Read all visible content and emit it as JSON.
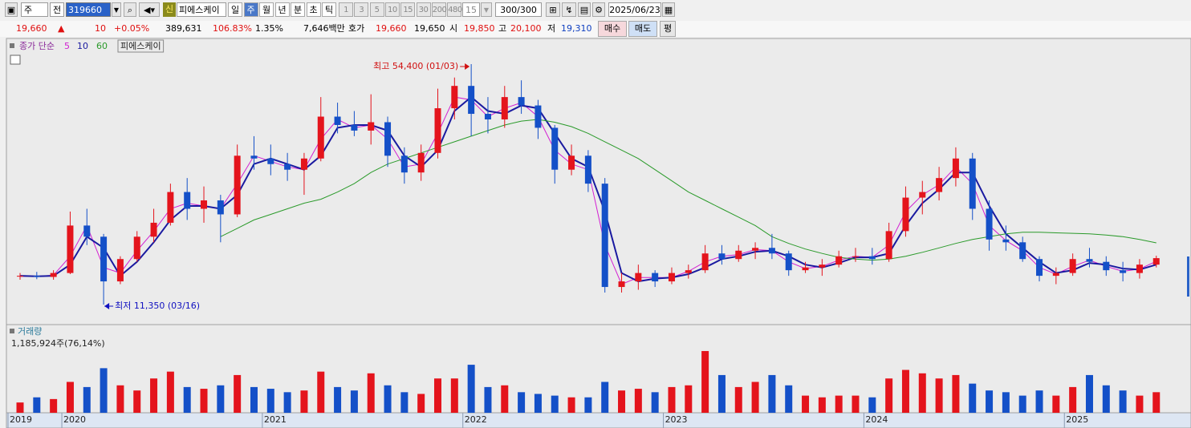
{
  "toolbar": {
    "market": "주",
    "prev": "전",
    "code": "319660",
    "badge": "신",
    "name": "피에스케이",
    "periods": [
      "일",
      "주",
      "월",
      "년",
      "분",
      "초",
      "틱"
    ],
    "intervals": [
      "1",
      "3",
      "5",
      "10",
      "15",
      "30",
      "200",
      "480"
    ],
    "interval": "15",
    "count": "300/300",
    "date": "2025/06/23"
  },
  "quote": {
    "price": "19,660",
    "arrow": "▲",
    "change": "10",
    "rate": "+0.05%",
    "volume": "389,631",
    "vol_ratio": "106.83%",
    "turnover": "1.35%",
    "amount": "7,646백만",
    "hoga": "호가",
    "ask": "19,660",
    "bid": "19,650",
    "open_label": "시",
    "open": "19,850",
    "high_label": "고",
    "high": "20,100",
    "low_label": "저",
    "low": "19,310",
    "buy": "매수",
    "sell": "매도",
    "avg": "평"
  },
  "chart_data": {
    "type": "candlestick",
    "categories": [
      "2019",
      null,
      null,
      "2020",
      null,
      null,
      null,
      null,
      null,
      null,
      null,
      null,
      null,
      null,
      null,
      "2021",
      null,
      null,
      null,
      null,
      null,
      null,
      null,
      null,
      null,
      null,
      null,
      "2022",
      null,
      null,
      null,
      null,
      null,
      null,
      null,
      null,
      null,
      null,
      null,
      "2023",
      null,
      null,
      null,
      null,
      null,
      null,
      null,
      null,
      null,
      null,
      null,
      "2024",
      null,
      null,
      null,
      null,
      null,
      null,
      null,
      null,
      null,
      null,
      null,
      "2025",
      null,
      null,
      null,
      null,
      null
    ],
    "open": [
      16400,
      16500,
      16300,
      17000,
      25500,
      23500,
      15500,
      19500,
      23500,
      26000,
      31500,
      28500,
      30000,
      27500,
      38000,
      37500,
      36500,
      35500,
      37500,
      45000,
      43500,
      42500,
      44000,
      38000,
      35000,
      38500,
      46500,
      50500,
      45500,
      44500,
      48500,
      47000,
      43000,
      35500,
      38000,
      33000,
      14500,
      15500,
      17000,
      15500,
      17000,
      17500,
      20500,
      19500,
      21000,
      21500,
      20500,
      17500,
      18000,
      18500,
      20000,
      20000,
      19500,
      24500,
      30500,
      31500,
      34000,
      37500,
      28500,
      23000,
      22500,
      19500,
      16500,
      17000,
      19500,
      19000,
      17500,
      17000,
      18500
    ],
    "high": [
      17000,
      17200,
      17500,
      28000,
      28500,
      24000,
      20000,
      24500,
      28500,
      33000,
      34000,
      32500,
      31000,
      40000,
      41500,
      40000,
      38500,
      38500,
      48500,
      47500,
      46000,
      49000,
      45000,
      39500,
      40000,
      50000,
      52000,
      54400,
      48500,
      50500,
      51500,
      48000,
      43500,
      40000,
      39000,
      34000,
      17000,
      18500,
      17500,
      18000,
      18500,
      22000,
      22000,
      22000,
      22500,
      24000,
      21000,
      19000,
      19500,
      21000,
      21500,
      21500,
      26000,
      32500,
      33500,
      36000,
      39500,
      38500,
      30000,
      25500,
      23500,
      20000,
      18000,
      20500,
      21500,
      20000,
      19000,
      19500,
      20100
    ],
    "low": [
      15800,
      15900,
      15800,
      16800,
      22000,
      11350,
      15000,
      19000,
      22500,
      25500,
      26500,
      26000,
      22500,
      27000,
      35500,
      34500,
      33500,
      31000,
      37000,
      42000,
      41500,
      40000,
      36000,
      33000,
      33500,
      37500,
      44500,
      41500,
      42000,
      43000,
      45500,
      41000,
      33000,
      34500,
      31500,
      13500,
      13500,
      14000,
      14500,
      15000,
      16000,
      17000,
      18500,
      19000,
      19500,
      19500,
      16500,
      17000,
      16500,
      18000,
      19000,
      18500,
      19000,
      23500,
      27500,
      30000,
      32500,
      26500,
      21000,
      21000,
      19000,
      15500,
      15000,
      16500,
      18000,
      16500,
      15500,
      16000,
      18000
    ],
    "close": [
      16500,
      16300,
      17000,
      25500,
      23500,
      15500,
      19500,
      23500,
      26000,
      31500,
      28500,
      30000,
      27500,
      38000,
      37500,
      36500,
      35500,
      37500,
      45000,
      43500,
      42500,
      44000,
      38000,
      35000,
      38500,
      46500,
      50500,
      45500,
      44500,
      48500,
      47000,
      43000,
      35500,
      38000,
      33000,
      14500,
      15500,
      17000,
      15500,
      17000,
      17500,
      20500,
      19500,
      21000,
      21500,
      20500,
      17500,
      18000,
      18500,
      20000,
      20000,
      19500,
      24500,
      30500,
      31500,
      34000,
      37500,
      28500,
      23000,
      22500,
      19500,
      16500,
      17000,
      19500,
      19000,
      17500,
      17000,
      18500,
      19660
    ],
    "up_color": "#e4141c",
    "down_color": "#1450c8",
    "ylim": [
      8480,
      57270
    ],
    "legend": {
      "label": "종가 단순",
      "name": "피에스케이"
    },
    "ma_series": [
      {
        "name": "5",
        "color": "#d21ed2",
        "values": [
          16400,
          16400,
          16600,
          20000,
          25500,
          18000,
          17000,
          21000,
          24500,
          28500,
          29500,
          29000,
          28500,
          33000,
          38000,
          37000,
          36000,
          35500,
          41000,
          44500,
          43000,
          43500,
          41000,
          36000,
          36500,
          42000,
          48500,
          48000,
          45000,
          46500,
          47500,
          45000,
          39000,
          36500,
          35500,
          22000,
          15000,
          16200,
          16200,
          16200,
          17300,
          19000,
          20000,
          20300,
          21200,
          21000,
          19000,
          17800,
          18200,
          19300,
          20000,
          19800,
          22000,
          28000,
          31000,
          32800,
          36000,
          33000,
          25500,
          22800,
          21000,
          18000,
          16800,
          18200,
          19300,
          18200,
          17300,
          17700,
          19100
        ]
      },
      {
        "name": "10",
        "color": "#1a1aa0",
        "values": [
          16500,
          16400,
          16500,
          18500,
          23500,
          21500,
          16500,
          19000,
          22500,
          26500,
          29000,
          29000,
          28500,
          31000,
          36500,
          37500,
          36500,
          35500,
          38000,
          43000,
          43500,
          43500,
          42500,
          38000,
          36000,
          39000,
          46000,
          48500,
          46000,
          45500,
          47000,
          46500,
          42000,
          37500,
          36000,
          28000,
          17000,
          15500,
          16000,
          16200,
          16800,
          18000,
          19500,
          20000,
          20800,
          21000,
          20000,
          18500,
          18000,
          18800,
          19800,
          19800,
          20500,
          25500,
          29500,
          32000,
          35000,
          35000,
          29000,
          24000,
          21500,
          19000,
          17000,
          17500,
          18800,
          18500,
          17800,
          17600,
          18500
        ]
      },
      {
        "name": "60",
        "color": "#2a9a2a",
        "values": [
          null,
          null,
          null,
          null,
          null,
          null,
          null,
          null,
          null,
          null,
          null,
          null,
          23500,
          25000,
          26500,
          27500,
          28500,
          29500,
          30200,
          31500,
          33000,
          35000,
          36500,
          37500,
          38500,
          39500,
          40500,
          41500,
          42500,
          43500,
          44200,
          44500,
          44000,
          43200,
          42000,
          40500,
          39000,
          37500,
          35500,
          33500,
          31500,
          30000,
          28500,
          27000,
          25500,
          23500,
          22300,
          21300,
          20500,
          19800,
          19500,
          19300,
          19500,
          20000,
          20700,
          21500,
          22300,
          23000,
          23500,
          24000,
          24300,
          24300,
          24200,
          24100,
          24000,
          23800,
          23500,
          23000,
          22400
        ]
      }
    ],
    "annotations": [
      {
        "text": "최고 54,400 (01/03)",
        "color": "#d01010"
      },
      {
        "text": "최저 11,350 (03/16)",
        "color": "#1010c0"
      }
    ],
    "volume": {
      "title": "거래량",
      "label": "1,185,924주(76,14%)",
      "ylim": [
        0,
        4300000
      ],
      "values": [
        600000,
        900000,
        800000,
        1800000,
        1500000,
        2600000,
        1600000,
        1300000,
        2000000,
        2400000,
        1500000,
        1400000,
        1600000,
        2200000,
        1500000,
        1400000,
        1200000,
        1300000,
        2400000,
        1500000,
        1300000,
        2300000,
        1600000,
        1200000,
        1100000,
        2000000,
        2000000,
        2800000,
        1500000,
        1600000,
        1200000,
        1100000,
        1000000,
        900000,
        900000,
        1800000,
        1300000,
        1400000,
        1200000,
        1500000,
        1600000,
        3600000,
        2200000,
        1500000,
        1800000,
        2200000,
        1600000,
        1000000,
        900000,
        1000000,
        1000000,
        900000,
        2000000,
        2500000,
        2300000,
        2000000,
        2200000,
        1700000,
        1300000,
        1200000,
        1000000,
        1300000,
        1000000,
        1500000,
        2200000,
        1600000,
        1300000,
        1000000,
        1200000
      ]
    }
  }
}
